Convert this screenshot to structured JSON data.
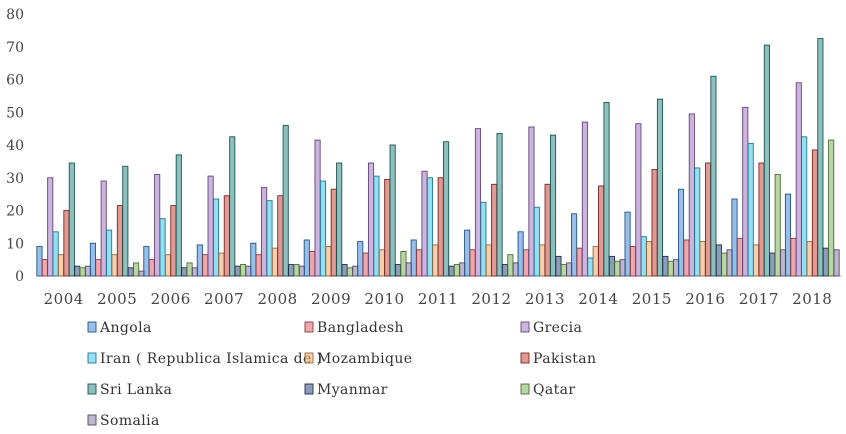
{
  "chart_data": {
    "type": "bar",
    "title": "",
    "xlabel": "",
    "ylabel": "",
    "ylim": [
      0,
      80
    ],
    "yticks": [
      0,
      10,
      20,
      30,
      40,
      50,
      60,
      70,
      80
    ],
    "grid": false,
    "legend_position": "bottom",
    "categories": [
      "2004",
      "2005",
      "2006",
      "2007",
      "2008",
      "2009",
      "2010",
      "2011",
      "2012",
      "2013",
      "2014",
      "2015",
      "2016",
      "2017",
      "2018"
    ],
    "series": [
      {
        "name": "Angola",
        "color": "#3f8ad8",
        "values": [
          9,
          10,
          9,
          9.5,
          10,
          11,
          10.5,
          11,
          14,
          13.5,
          19,
          19.5,
          26.5,
          23.5,
          25
        ]
      },
      {
        "name": "Bangladesh",
        "color": "#e0606a",
        "values": [
          5,
          5,
          5,
          6.5,
          6.5,
          7.5,
          7,
          8,
          8,
          8,
          8.5,
          9,
          11,
          11.5,
          11.5
        ]
      },
      {
        "name": "Grecia",
        "color": "#a476c4",
        "values": [
          30,
          29,
          31,
          30.5,
          27,
          41.5,
          34.5,
          32,
          45,
          45.5,
          47,
          46.5,
          49.5,
          51.5,
          59
        ]
      },
      {
        "name": "Iran ( Republica Islamica de )",
        "color": "#3cc4ea",
        "values": [
          13.5,
          14,
          17.5,
          23.5,
          23,
          29,
          30.5,
          30,
          22.5,
          21,
          5.5,
          12,
          33,
          40.5,
          42.5
        ]
      },
      {
        "name": "Mozambique",
        "color": "#f2a86a",
        "values": [
          6.5,
          6.5,
          6.5,
          7,
          8.5,
          9,
          8,
          9.5,
          9.5,
          9.5,
          9,
          10.5,
          10.5,
          9.5,
          10.5
        ]
      },
      {
        "name": "Pakistan",
        "color": "#c8453d",
        "values": [
          20,
          21.5,
          21.5,
          24.5,
          24.5,
          26.5,
          29.5,
          30,
          28,
          28,
          27.5,
          32.5,
          34.5,
          34.5,
          38.5
        ]
      },
      {
        "name": "Sri Lanka",
        "color": "#2e8a86",
        "values": [
          34.5,
          33.5,
          37,
          42.5,
          46,
          34.5,
          40,
          41,
          43.5,
          43,
          53,
          54,
          61,
          70.5,
          72.5
        ]
      },
      {
        "name": "Myanmar",
        "color": "#2f4d7c",
        "values": [
          3,
          2.5,
          2.5,
          3,
          3.5,
          3.5,
          3.5,
          3,
          3.5,
          6,
          6,
          6,
          9.5,
          7,
          8.5
        ]
      },
      {
        "name": "Qatar",
        "color": "#7db558",
        "values": [
          2.5,
          4,
          4,
          3.5,
          3.5,
          2.5,
          7.5,
          3.5,
          6.5,
          3.5,
          4.5,
          4.5,
          7,
          31,
          41.5
        ]
      },
      {
        "name": "Somalia",
        "color": "#8a7aa8",
        "values": [
          3,
          1.5,
          2.5,
          3,
          3,
          3,
          4,
          4,
          4,
          4,
          5,
          5,
          8,
          8,
          8
        ]
      }
    ]
  }
}
